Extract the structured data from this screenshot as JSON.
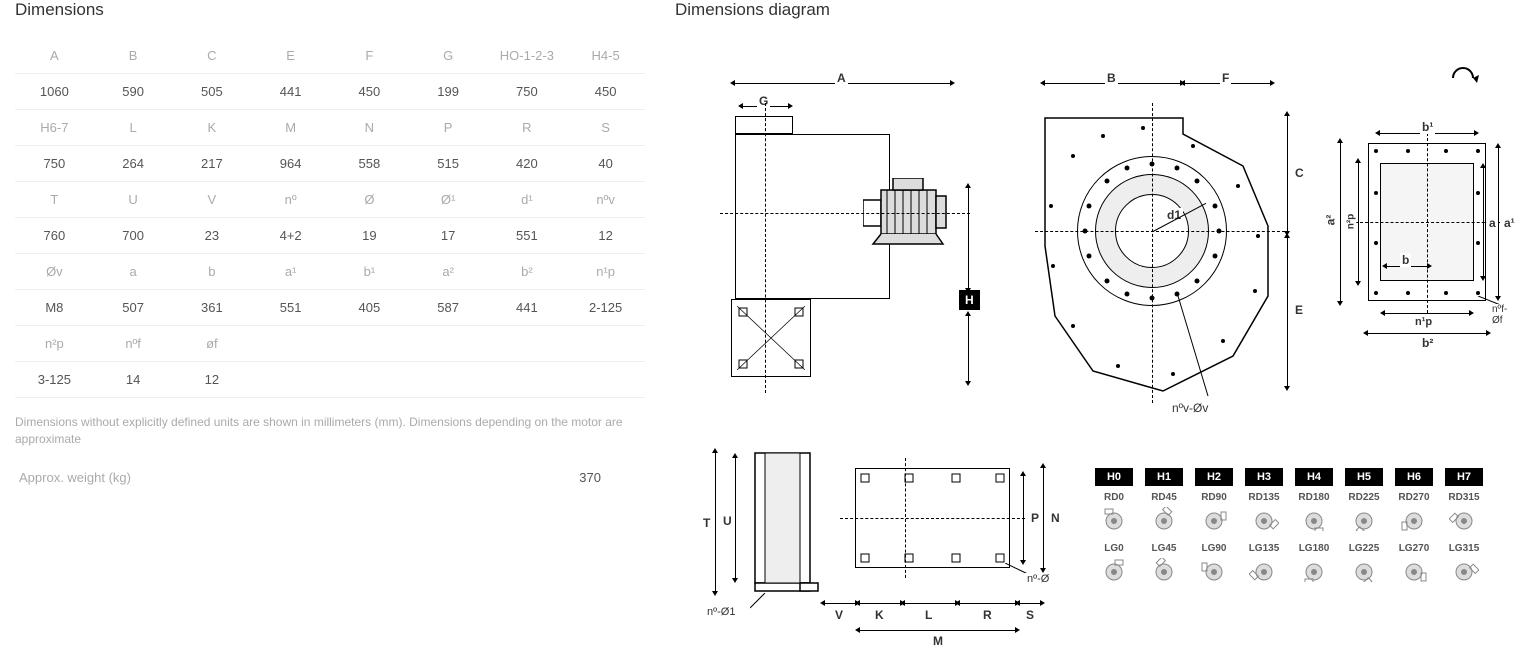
{
  "titles": {
    "dimensions": "Dimensions",
    "diagram": "Dimensions diagram"
  },
  "table": {
    "rows": [
      {
        "headers": [
          "A",
          "B",
          "C",
          "E",
          "F",
          "G",
          "HO-1-2-3",
          "H4-5"
        ],
        "values": [
          "1060",
          "590",
          "505",
          "441",
          "450",
          "199",
          "750",
          "450"
        ]
      },
      {
        "headers": [
          "H6-7",
          "L",
          "K",
          "M",
          "N",
          "P",
          "R",
          "S"
        ],
        "values": [
          "750",
          "264",
          "217",
          "964",
          "558",
          "515",
          "420",
          "40"
        ]
      },
      {
        "headers": [
          "T",
          "U",
          "V",
          "nº",
          "Ø",
          "Ø¹",
          "d¹",
          "nºv"
        ],
        "values": [
          "760",
          "700",
          "23",
          "4+2",
          "19",
          "17",
          "551",
          "12"
        ]
      },
      {
        "headers": [
          "Øv",
          "a",
          "b",
          "a¹",
          "b¹",
          "a²",
          "b²",
          "n¹p"
        ],
        "values": [
          "M8",
          "507",
          "361",
          "551",
          "405",
          "587",
          "441",
          "2-125"
        ]
      },
      {
        "headers": [
          "n²p",
          "nºf",
          "øf",
          "",
          "",
          "",
          "",
          ""
        ],
        "values": [
          "3-125",
          "14",
          "12",
          "",
          "",
          "",
          "",
          ""
        ]
      }
    ]
  },
  "note": "Dimensions without explicitly defined units are shown in millimeters (mm). Dimensions depending on the motor are approximate",
  "weight": {
    "label": "Approx. weight (kg)",
    "value": "370"
  },
  "dlabels": {
    "A": "A",
    "B": "B",
    "C": "C",
    "E": "E",
    "F": "F",
    "G": "G",
    "H": "H",
    "T": "T",
    "U": "U",
    "V": "V",
    "K": "K",
    "L": "L",
    "M": "M",
    "N": "N",
    "P": "P",
    "R": "R",
    "S": "S",
    "d1": "d1",
    "nov": "nºv-Øv",
    "no": "nº-Ø",
    "no1": "nº-Ø1",
    "a": "a",
    "a1": "a¹",
    "a2": "a²",
    "b": "b",
    "b1": "b¹",
    "b2": "b²",
    "n1p": "n¹p",
    "n2p": "n²p",
    "nof": "nºf-Øf"
  },
  "orient": {
    "h": [
      "H0",
      "H1",
      "H2",
      "H3",
      "H4",
      "H5",
      "H6",
      "H7"
    ],
    "rd": [
      "RD0",
      "RD45",
      "RD90",
      "RD135",
      "RD180",
      "RD225",
      "RD270",
      "RD315"
    ],
    "lg": [
      "LG0",
      "LG45",
      "LG90",
      "LG135",
      "LG180",
      "LG225",
      "LG270",
      "LG315"
    ]
  }
}
